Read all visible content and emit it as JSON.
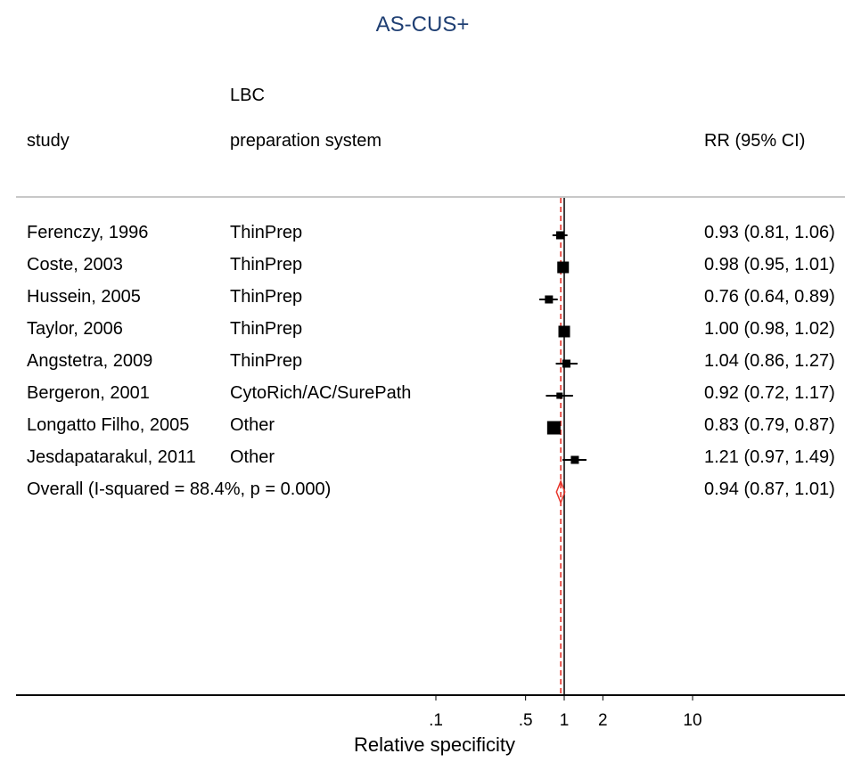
{
  "chart_data": {
    "type": "forest",
    "title": "AS-CUS+",
    "columns": {
      "study": "study",
      "method_line1": "LBC",
      "method_line2": "preparation system",
      "effect": "RR (95% CI)"
    },
    "rows": [
      {
        "study": "Ferenczy, 1996",
        "method": "ThinPrep",
        "rr": 0.93,
        "lo": 0.81,
        "hi": 1.06,
        "label": "0.93 (0.81, 1.06)",
        "weight": "small"
      },
      {
        "study": "Coste, 2003",
        "method": "ThinPrep",
        "rr": 0.98,
        "lo": 0.95,
        "hi": 1.01,
        "label": "0.98 (0.95, 1.01)",
        "weight": "large"
      },
      {
        "study": "Hussein, 2005",
        "method": "ThinPrep",
        "rr": 0.76,
        "lo": 0.64,
        "hi": 0.89,
        "label": "0.76 (0.64, 0.89)",
        "weight": "small"
      },
      {
        "study": "Taylor, 2006",
        "method": "ThinPrep",
        "rr": 1.0,
        "lo": 0.98,
        "hi": 1.02,
        "label": "1.00 (0.98, 1.02)",
        "weight": "large"
      },
      {
        "study": "Angstetra, 2009",
        "method": "ThinPrep",
        "rr": 1.04,
        "lo": 0.86,
        "hi": 1.27,
        "label": "1.04 (0.86, 1.27)",
        "weight": "small"
      },
      {
        "study": "Bergeron, 2001",
        "method": "CytoRich/AC/SurePath",
        "rr": 0.92,
        "lo": 0.72,
        "hi": 1.17,
        "label": "0.92 (0.72, 1.17)",
        "weight": "tiny"
      },
      {
        "study": "Longatto Filho, 2005",
        "method": "Other",
        "rr": 0.83,
        "lo": 0.79,
        "hi": 0.87,
        "label": "0.83 (0.79, 0.87)",
        "weight": "xlarge"
      },
      {
        "study": "Jesdapatarakul, 2011",
        "method": "Other",
        "rr": 1.21,
        "lo": 0.97,
        "hi": 1.49,
        "label": "1.21 (0.97, 1.49)",
        "weight": "small"
      }
    ],
    "overall": {
      "label_text": "Overall  (I-squared = 88.4%, p = 0.000)",
      "rr": 0.94,
      "lo": 0.87,
      "hi": 1.01,
      "label": "0.94 (0.87, 1.01)"
    },
    "x_axis": {
      "label": "Relative specificity",
      "scale": "log",
      "ticks": [
        {
          "value": 0.1,
          "label": ".1"
        },
        {
          "value": 0.5,
          "label": ".5"
        },
        {
          "value": 1,
          "label": "1"
        },
        {
          "value": 2,
          "label": "2"
        },
        {
          "value": 10,
          "label": "10"
        }
      ]
    },
    "colors": {
      "overall_line": "#e8352b",
      "diamond": "#e8352b",
      "title": "#1f3f73",
      "marker": "#000000"
    }
  }
}
